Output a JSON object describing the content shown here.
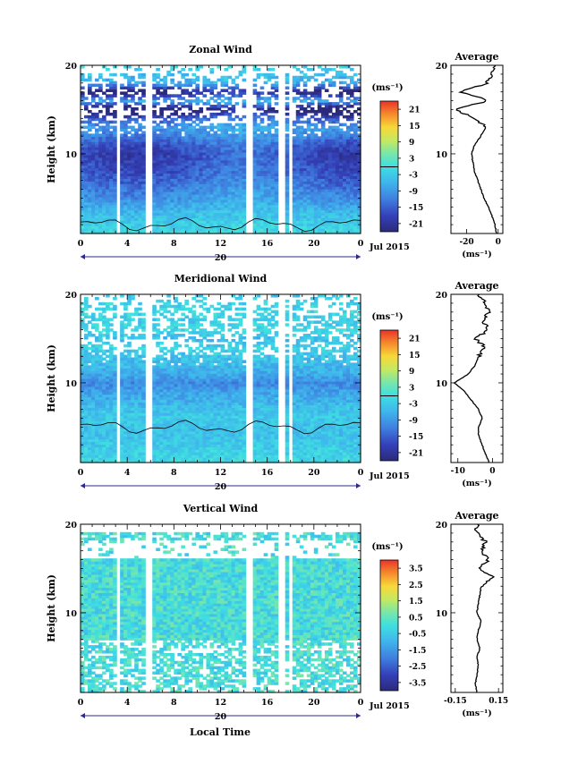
{
  "figure": {
    "xlabel": "Local Time",
    "date_label": "Jul 2015",
    "day_label": "20",
    "height_label": "Height (km)",
    "cbar_unit": "(ms⁻¹)",
    "avg_unit": "(ms⁻¹)"
  },
  "chart_data": [
    {
      "type": "heatmap",
      "title": "Zonal Wind",
      "xlabel": "Local Time",
      "ylabel": "Height (km)",
      "x_ticks": [
        "0",
        "4",
        "8",
        "12",
        "16",
        "20",
        "0"
      ],
      "y_ticks": [
        "10",
        "20"
      ],
      "xlim": [
        0,
        24
      ],
      "ylim": [
        1,
        20
      ],
      "colorbar": {
        "unit": "(ms⁻¹)",
        "min": -24,
        "max": 24,
        "ticks": [
          "21",
          "15",
          "9",
          "3",
          "-3",
          "-9",
          "-15",
          "-21"
        ],
        "zero_line": 0
      },
      "data_gaps_hours": [
        [
          3.0,
          3.5
        ],
        [
          5.5,
          6.0
        ],
        [
          14.3,
          14.9
        ],
        [
          17.0,
          17.4
        ],
        [
          17.8,
          18.3
        ]
      ],
      "profile_mean_kmh_vs_ms": [
        [
          1,
          -1
        ],
        [
          2,
          -2
        ],
        [
          3,
          -4
        ],
        [
          4,
          -6
        ],
        [
          5,
          -9
        ],
        [
          6,
          -11
        ],
        [
          7,
          -13
        ],
        [
          8,
          -15
        ],
        [
          9,
          -16
        ],
        [
          10,
          -17
        ],
        [
          11,
          -15
        ],
        [
          12,
          -11
        ],
        [
          13,
          -8
        ],
        [
          14,
          -14
        ],
        [
          15,
          -28
        ],
        [
          16,
          -6
        ],
        [
          17,
          -24
        ],
        [
          18,
          -7
        ],
        [
          19,
          -4
        ],
        [
          20,
          -2
        ]
      ],
      "field_summary": "westward (blue) winds strongest near 9-11 km, weak near surface, patchy above 13 km",
      "average_panel": {
        "title": "Average",
        "x_ticks": [
          "-20",
          "0"
        ],
        "xlim": [
          -30,
          3
        ]
      }
    },
    {
      "type": "heatmap",
      "title": "Meridional Wind",
      "xlabel": "Local Time",
      "ylabel": "Height (km)",
      "x_ticks": [
        "0",
        "4",
        "8",
        "12",
        "16",
        "20",
        "0"
      ],
      "y_ticks": [
        "10",
        "20"
      ],
      "xlim": [
        0,
        24
      ],
      "ylim": [
        1,
        20
      ],
      "colorbar": {
        "unit": "(ms⁻¹)",
        "min": -24,
        "max": 24,
        "ticks": [
          "21",
          "15",
          "9",
          "3",
          "-3",
          "-9",
          "-15",
          "-21"
        ],
        "zero_line": 0
      },
      "data_gaps_hours": [
        [
          3.0,
          3.5
        ],
        [
          5.5,
          6.0
        ],
        [
          14.3,
          14.9
        ],
        [
          17.0,
          17.4
        ],
        [
          17.8,
          18.3
        ]
      ],
      "profile_mean_kmh_vs_ms": [
        [
          1,
          -1
        ],
        [
          2,
          -2
        ],
        [
          3,
          -3
        ],
        [
          4,
          -4
        ],
        [
          5,
          -4
        ],
        [
          6,
          -3
        ],
        [
          7,
          -4
        ],
        [
          8,
          -6
        ],
        [
          9,
          -8
        ],
        [
          10,
          -11
        ],
        [
          11,
          -7
        ],
        [
          12,
          -5
        ],
        [
          13,
          -4
        ],
        [
          14,
          -2
        ],
        [
          15,
          -5
        ],
        [
          16,
          -1
        ],
        [
          17,
          -3
        ],
        [
          18,
          -1
        ],
        [
          19,
          -2
        ],
        [
          20,
          -4
        ]
      ],
      "field_summary": "southward (blue) flow strongest near 10-11 km, weak near surface",
      "average_panel": {
        "title": "Average",
        "x_ticks": [
          "-10",
          "0"
        ],
        "xlim": [
          -12,
          3
        ]
      }
    },
    {
      "type": "heatmap",
      "title": "Vertical Wind",
      "xlabel": "Local Time",
      "ylabel": "Height (km)",
      "x_ticks": [
        "0",
        "4",
        "8",
        "12",
        "16",
        "20",
        "0"
      ],
      "y_ticks": [
        "10",
        "20"
      ],
      "xlim": [
        0,
        24
      ],
      "ylim": [
        1,
        20
      ],
      "colorbar": {
        "unit": "(ms⁻¹)",
        "min": -4,
        "max": 4,
        "ticks": [
          "3.5",
          "2.5",
          "1.5",
          "0.5",
          "-0.5",
          "-1.5",
          "-2.5",
          "-3.5"
        ],
        "zero_line": null
      },
      "data_gaps_hours": [
        [
          3.0,
          3.5
        ],
        [
          5.5,
          6.0
        ],
        [
          14.3,
          14.9
        ],
        [
          17.0,
          17.4
        ],
        [
          17.8,
          18.3
        ]
      ],
      "profile_mean_kmh_vs_ms": [
        [
          1,
          0.0
        ],
        [
          2,
          -0.01
        ],
        [
          3,
          0.0
        ],
        [
          4,
          0.01
        ],
        [
          5,
          0.0
        ],
        [
          6,
          0.02
        ],
        [
          7,
          0.0
        ],
        [
          8,
          0.01
        ],
        [
          9,
          0.03
        ],
        [
          10,
          0.0
        ],
        [
          11,
          0.01
        ],
        [
          12,
          0.02
        ],
        [
          13,
          0.03
        ],
        [
          14,
          0.12
        ],
        [
          15,
          0.02
        ],
        [
          16,
          0.08
        ],
        [
          17,
          0.03
        ],
        [
          18,
          0.06
        ],
        [
          19,
          0.0
        ],
        [
          20,
          0.0
        ]
      ],
      "field_summary": "near-zero vertical wind (cyan-green) everywhere, sparse data below 6 km",
      "average_panel": {
        "title": "Average",
        "x_ticks": [
          "-0.15",
          "0.15"
        ],
        "xlim": [
          -0.18,
          0.18
        ]
      }
    }
  ]
}
